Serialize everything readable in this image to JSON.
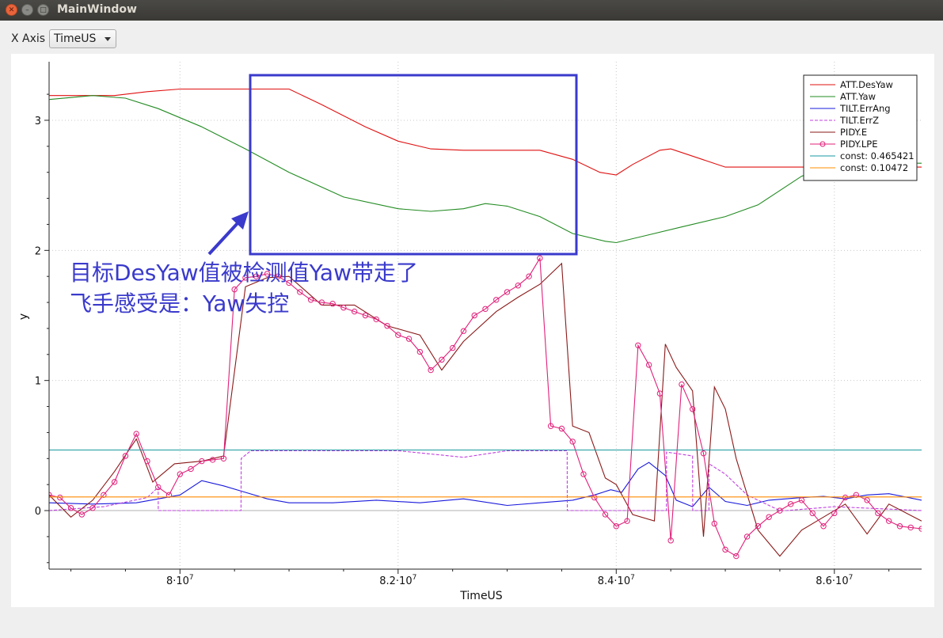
{
  "window": {
    "title": "MainWindow"
  },
  "toolbar": {
    "x_axis_label": "X Axis",
    "x_axis_value": "TimeUS"
  },
  "annotation": {
    "line1": "目标DesYaw值被检测值Yaw带走了",
    "line2": "飞手感受是：Yaw失控"
  },
  "chart_data": {
    "type": "line",
    "xlabel": "TimeUS",
    "ylabel": "y",
    "xlim": [
      78800000,
      86800000
    ],
    "ylim": [
      -0.45,
      3.45
    ],
    "grid": true,
    "legend_position": "top-right",
    "x_ticks": [
      {
        "value": 80000000,
        "base": "8·10",
        "exp": "7"
      },
      {
        "value": 82000000,
        "base": "8.2·10",
        "exp": "7"
      },
      {
        "value": 84000000,
        "base": "8.4·10",
        "exp": "7"
      },
      {
        "value": 86000000,
        "base": "8.6·10",
        "exp": "7"
      }
    ],
    "y_ticks": [
      0,
      1,
      2,
      3
    ],
    "series": [
      {
        "name": "ATT.DesYaw",
        "color": "#e01010",
        "style": "solid",
        "x": [
          78800000,
          79400000,
          79700000,
          80000000,
          80600000,
          81000000,
          81300000,
          81700000,
          82000000,
          82300000,
          82600000,
          83000000,
          83300000,
          83600000,
          83850000,
          84000000,
          84150000,
          84400000,
          84500000,
          85000000,
          85500000,
          86000000,
          86800000
        ],
        "y": [
          3.19,
          3.19,
          3.22,
          3.24,
          3.24,
          3.24,
          3.12,
          2.95,
          2.84,
          2.78,
          2.77,
          2.77,
          2.77,
          2.7,
          2.6,
          2.58,
          2.66,
          2.77,
          2.78,
          2.64,
          2.64,
          2.64,
          2.64
        ]
      },
      {
        "name": "ATT.Yaw",
        "color": "#228b22",
        "style": "solid",
        "x": [
          78800000,
          79200000,
          79500000,
          79800000,
          80200000,
          80600000,
          81000000,
          81500000,
          82000000,
          82300000,
          82600000,
          82800000,
          83000000,
          83300000,
          83600000,
          83900000,
          84000000,
          84300000,
          84600000,
          85000000,
          85300000,
          85700000,
          86000000,
          86400000,
          86800000
        ],
        "y": [
          3.16,
          3.19,
          3.17,
          3.09,
          2.95,
          2.78,
          2.6,
          2.41,
          2.32,
          2.3,
          2.32,
          2.36,
          2.34,
          2.26,
          2.13,
          2.07,
          2.06,
          2.12,
          2.18,
          2.26,
          2.35,
          2.57,
          2.66,
          2.67,
          2.67
        ]
      },
      {
        "name": "TILT.ErrAng",
        "color": "#1a1adc",
        "style": "solid",
        "x": [
          78800000,
          79200000,
          79600000,
          80000000,
          80200000,
          80400000,
          80600000,
          80800000,
          81000000,
          81400000,
          81800000,
          82200000,
          82600000,
          83000000,
          83300000,
          83600000,
          83800000,
          83950000,
          84050000,
          84200000,
          84300000,
          84450000,
          84550000,
          84700000,
          84850000,
          85000000,
          85200000,
          85400000,
          85700000,
          85900000,
          86100000,
          86300000,
          86500000,
          86800000
        ],
        "y": [
          0.06,
          0.05,
          0.06,
          0.12,
          0.23,
          0.19,
          0.14,
          0.09,
          0.06,
          0.06,
          0.08,
          0.06,
          0.09,
          0.04,
          0.06,
          0.08,
          0.12,
          0.16,
          0.14,
          0.32,
          0.37,
          0.27,
          0.08,
          0.03,
          0.18,
          0.07,
          0.04,
          0.08,
          0.1,
          0.11,
          0.09,
          0.12,
          0.13,
          0.08
        ]
      },
      {
        "name": "TILT.ErrZ",
        "color": "#c040e0",
        "style": "dashed",
        "x": [
          78800000,
          79300000,
          79700000,
          79800000,
          79801000,
          80300000,
          80560000,
          80561000,
          80650000,
          81000000,
          82000000,
          82600000,
          83000000,
          83300000,
          83550000,
          83551000,
          84200000,
          84460000,
          84461000,
          84700000,
          84701000,
          84850000,
          84851000,
          85000000,
          85200000,
          85500000,
          85560000,
          86000000,
          86800000
        ],
        "y": [
          0.0,
          0.03,
          0.1,
          0.18,
          0.0,
          0.0,
          0.0,
          0.4,
          0.46,
          0.46,
          0.46,
          0.41,
          0.46,
          0.46,
          0.46,
          0.0,
          0.0,
          0.0,
          0.45,
          0.42,
          0.0,
          0.0,
          0.36,
          0.28,
          0.12,
          0.0,
          0.0,
          0.03,
          0.0
        ]
      },
      {
        "name": "PIDY.E",
        "color": "#8b1a1a",
        "style": "solid",
        "x": [
          78800000,
          79000000,
          79200000,
          79400000,
          79600000,
          79750000,
          79950000,
          80200000,
          80400000,
          80600000,
          80800000,
          81000000,
          81300000,
          81600000,
          81900000,
          82200000,
          82400000,
          82600000,
          82900000,
          83100000,
          83300000,
          83500000,
          83600000,
          83750000,
          83900000,
          84000000,
          84150000,
          84350000,
          84450000,
          84550000,
          84700000,
          84800000,
          84900000,
          85000000,
          85100000,
          85300000,
          85500000,
          85700000,
          85900000,
          86100000,
          86300000,
          86500000,
          86800000
        ],
        "y": [
          0.12,
          -0.05,
          0.08,
          0.3,
          0.55,
          0.22,
          0.36,
          0.38,
          0.42,
          1.72,
          1.79,
          1.8,
          1.58,
          1.58,
          1.42,
          1.35,
          1.08,
          1.3,
          1.53,
          1.64,
          1.74,
          1.9,
          0.65,
          0.6,
          0.25,
          0.2,
          -0.03,
          -0.08,
          1.28,
          1.1,
          0.92,
          -0.2,
          0.95,
          0.78,
          0.4,
          -0.15,
          -0.35,
          -0.15,
          -0.05,
          0.05,
          -0.18,
          0.05,
          -0.08
        ]
      },
      {
        "name": "PIDY.LPE",
        "color": "#e0207a",
        "style": "marker",
        "x": [
          78800000,
          78900000,
          79000000,
          79100000,
          79200000,
          79300000,
          79400000,
          79500000,
          79600000,
          79700000,
          79800000,
          79900000,
          80000000,
          80100000,
          80200000,
          80300000,
          80400000,
          80500000,
          80600000,
          80700000,
          80800000,
          80900000,
          81000000,
          81100000,
          81200000,
          81300000,
          81400000,
          81500000,
          81600000,
          81700000,
          81800000,
          81900000,
          82000000,
          82100000,
          82200000,
          82300000,
          82400000,
          82500000,
          82600000,
          82700000,
          82800000,
          82900000,
          83000000,
          83100000,
          83200000,
          83300000,
          83400000,
          83500000,
          83600000,
          83700000,
          83800000,
          83900000,
          84000000,
          84100000,
          84200000,
          84300000,
          84400000,
          84500000,
          84600000,
          84700000,
          84800000,
          84900000,
          85000000,
          85100000,
          85200000,
          85300000,
          85400000,
          85500000,
          85600000,
          85700000,
          85800000,
          85900000,
          86000000,
          86100000,
          86200000,
          86300000,
          86400000,
          86500000,
          86600000,
          86700000,
          86800000
        ],
        "y": [
          0.12,
          0.1,
          0.02,
          -0.03,
          0.02,
          0.12,
          0.22,
          0.42,
          0.59,
          0.38,
          0.18,
          0.12,
          0.28,
          0.32,
          0.38,
          0.39,
          0.4,
          1.7,
          1.79,
          1.8,
          1.82,
          1.8,
          1.75,
          1.68,
          1.62,
          1.6,
          1.59,
          1.56,
          1.53,
          1.5,
          1.47,
          1.42,
          1.35,
          1.32,
          1.22,
          1.08,
          1.16,
          1.25,
          1.38,
          1.5,
          1.55,
          1.62,
          1.68,
          1.73,
          1.8,
          1.94,
          0.65,
          0.63,
          0.53,
          0.28,
          0.1,
          -0.03,
          -0.12,
          -0.08,
          1.27,
          1.12,
          0.9,
          -0.23,
          0.97,
          0.78,
          0.44,
          -0.1,
          -0.3,
          -0.35,
          -0.2,
          -0.12,
          -0.05,
          0.0,
          0.05,
          0.08,
          -0.02,
          -0.12,
          -0.02,
          0.1,
          0.12,
          0.08,
          -0.02,
          -0.08,
          -0.12,
          -0.13,
          -0.14
        ]
      },
      {
        "name": "const: 0.465421",
        "color": "#1a9aa0",
        "style": "solid",
        "x": [
          78800000,
          86800000
        ],
        "y": [
          0.465421,
          0.465421
        ]
      },
      {
        "name": "const: 0.10472",
        "color": "#ff8c00",
        "style": "solid",
        "x": [
          78800000,
          86800000
        ],
        "y": [
          0.10472,
          0.10472
        ]
      }
    ]
  }
}
